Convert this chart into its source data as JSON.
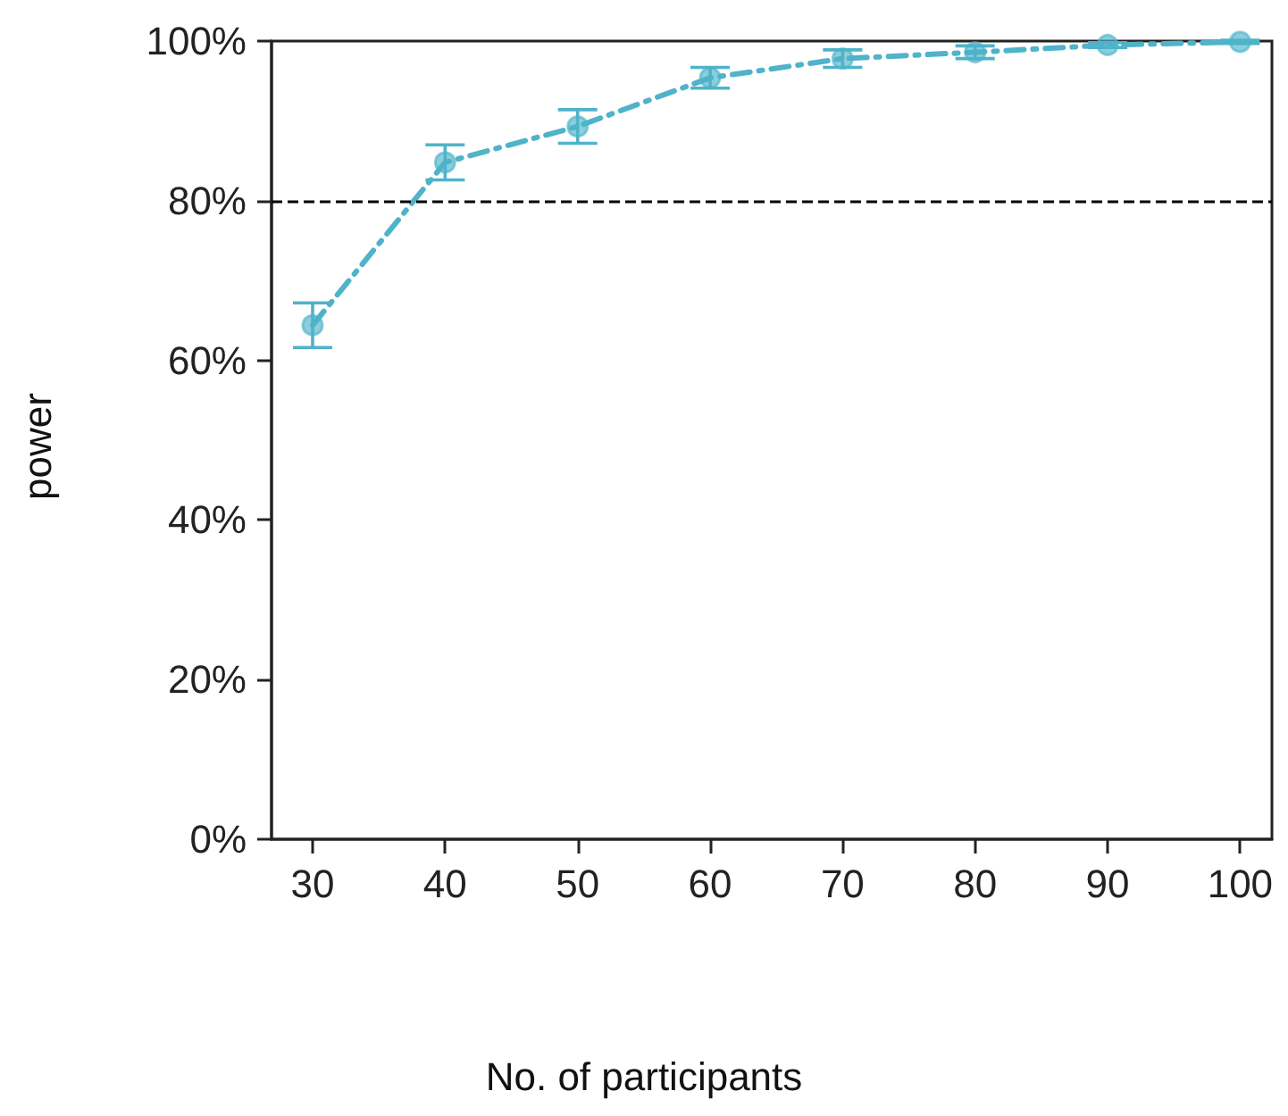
{
  "chart_data": {
    "type": "line",
    "xlabel": "No. of participants",
    "ylabel": "power",
    "x": [
      30,
      40,
      50,
      60,
      70,
      80,
      90,
      100
    ],
    "series": [
      {
        "color": "#4fb3c9",
        "values": [
          64.4,
          84.8,
          89.3,
          95.4,
          97.8,
          98.6,
          99.5,
          99.9
        ],
        "errors": [
          2.8,
          2.2,
          2.1,
          1.3,
          1.1,
          0.8,
          0.3,
          0.2
        ]
      }
    ],
    "xlim": [
      26.9,
      102.4
    ],
    "xticks": [
      30,
      40,
      50,
      60,
      70,
      80,
      90,
      100
    ],
    "ylim": [
      0,
      100
    ],
    "yticks": [
      {
        "value": 0,
        "label": "0%"
      },
      {
        "value": 20,
        "label": "20%"
      },
      {
        "value": 40,
        "label": "40%"
      },
      {
        "value": 60,
        "label": "60%"
      },
      {
        "value": 80,
        "label": "80%"
      },
      {
        "value": 100,
        "label": "100%"
      }
    ],
    "ref_lines": [
      {
        "axis": "y",
        "value": 80,
        "color": "#000000",
        "line_style": "dashed"
      }
    ],
    "marker": "circle",
    "line_style": "dashed"
  }
}
